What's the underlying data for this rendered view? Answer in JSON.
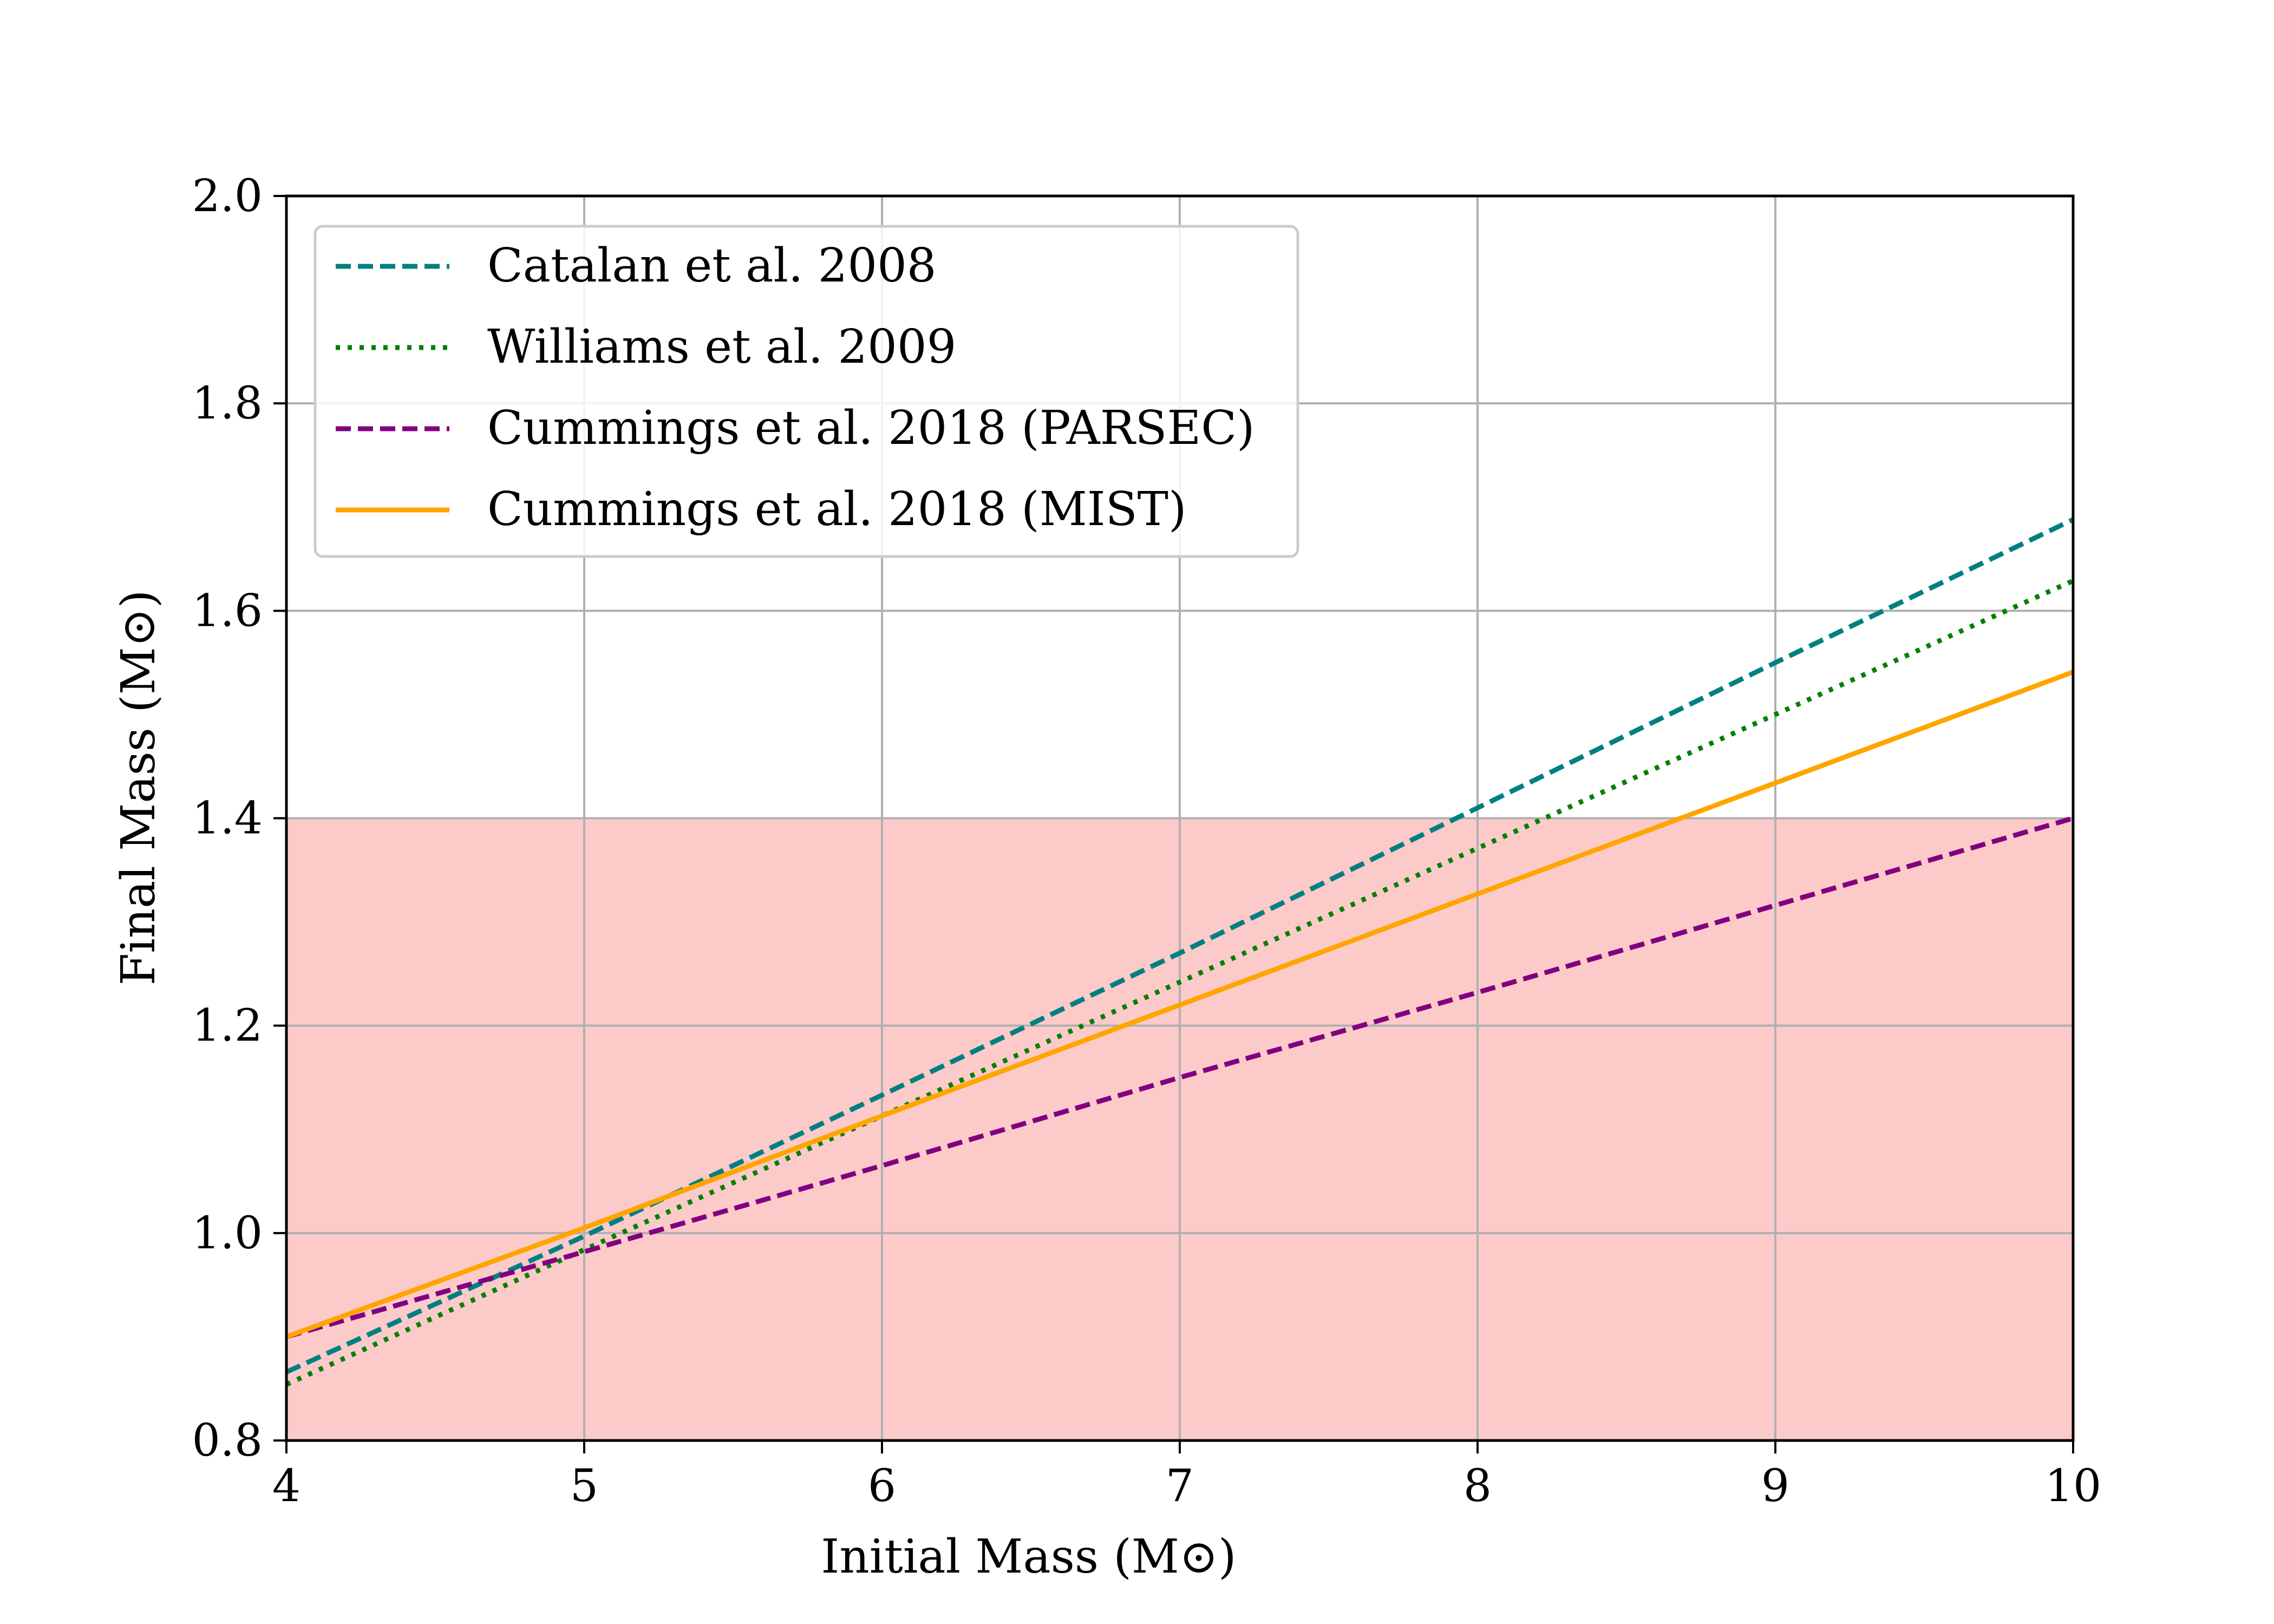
{
  "chart_data": {
    "type": "line",
    "xlabel": "Initial Mass (M⊙)",
    "ylabel": "Final Mass (M⊙)",
    "xlim": [
      4,
      10
    ],
    "ylim": [
      0.8,
      2.0
    ],
    "x_ticks": [
      "4",
      "5",
      "6",
      "7",
      "8",
      "9",
      "10"
    ],
    "y_ticks": [
      "0.8",
      "1.0",
      "1.2",
      "1.4",
      "1.6",
      "1.8",
      "2.0"
    ],
    "grid": true,
    "legend_position": "upper-left",
    "shaded_region": {
      "y_from": 0.8,
      "y_to": 1.4,
      "color": "#fdcaca"
    },
    "series": [
      {
        "name": "Catalan et al. 2008",
        "color": "#008080",
        "style": "dashed",
        "x": [
          4,
          5,
          6,
          7,
          8,
          9,
          10
        ],
        "y": [
          0.866,
          0.997,
          1.133,
          1.27,
          1.41,
          1.55,
          1.688
        ]
      },
      {
        "name": "Williams et al. 2009",
        "color": "#008000",
        "style": "dotted",
        "x": [
          4,
          5,
          6,
          7,
          8,
          9,
          10
        ],
        "y": [
          0.854,
          0.984,
          1.113,
          1.242,
          1.371,
          1.5,
          1.629
        ]
      },
      {
        "name": "Cummings et al. 2018 (PARSEC)",
        "color": "#800080",
        "style": "dashed",
        "x": [
          4,
          5,
          6,
          7,
          8,
          9,
          10
        ],
        "y": [
          0.9,
          0.982,
          1.065,
          1.15,
          1.232,
          1.316,
          1.4
        ]
      },
      {
        "name": "Cummings et al. 2018 (MIST)",
        "color": "#ffa500",
        "style": "solid",
        "x": [
          4,
          5,
          6,
          7,
          8,
          9,
          10
        ],
        "y": [
          0.9,
          1.005,
          1.113,
          1.22,
          1.327,
          1.434,
          1.541
        ]
      }
    ]
  }
}
